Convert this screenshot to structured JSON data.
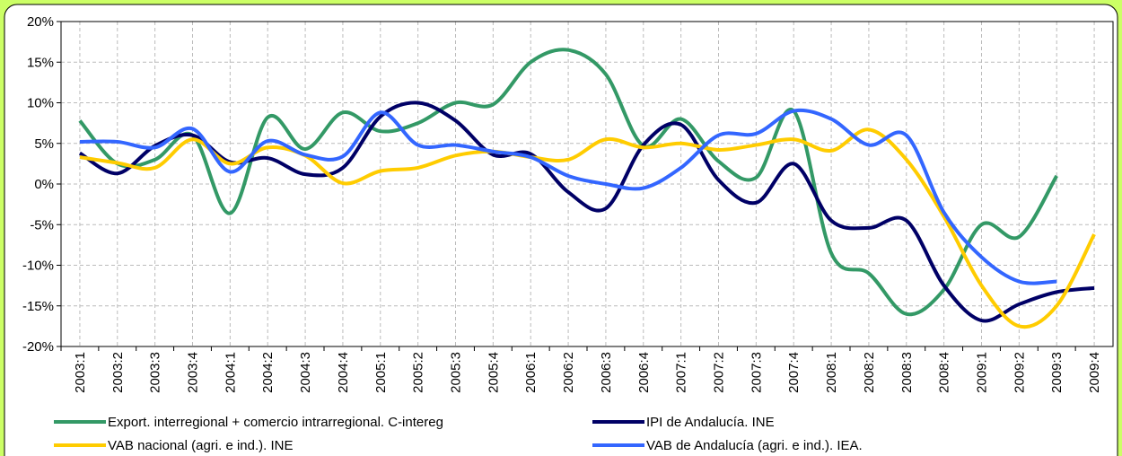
{
  "chart_data": {
    "type": "line",
    "categories": [
      "2003:1",
      "2003:2",
      "2003:3",
      "2003:4",
      "2004:1",
      "2004:2",
      "2004:3",
      "2004:4",
      "2005:1",
      "2005:2",
      "2005:3",
      "2005:4",
      "2006:1",
      "2006:2",
      "2006:3",
      "2006:4",
      "2007:1",
      "2007:2",
      "2007:3",
      "2007:4",
      "2008:1",
      "2008:2",
      "2008:3",
      "2008:4",
      "2009:1",
      "2009:2",
      "2009:3",
      "2009:4"
    ],
    "series": [
      {
        "name": "Export. interregional + comercio intrarregional. C-intereg",
        "color": "#339966",
        "values": [
          7.8,
          2.5,
          3.0,
          6.0,
          -3.6,
          8.2,
          4.3,
          8.8,
          6.5,
          7.5,
          10.0,
          9.8,
          15.0,
          16.5,
          13.5,
          4.7,
          8.0,
          2.8,
          0.8,
          9.0,
          -8.5,
          -11.0,
          -16.0,
          -13.0,
          -5.0,
          -6.5,
          1.0,
          null
        ]
      },
      {
        "name": "IPI de Andalucía. INE",
        "color": "#000066",
        "values": [
          3.8,
          1.3,
          4.7,
          6.0,
          2.7,
          3.2,
          1.2,
          2.0,
          8.3,
          10.0,
          7.8,
          3.6,
          3.7,
          -1.0,
          -3.0,
          4.8,
          7.3,
          0.5,
          -2.3,
          2.5,
          -4.5,
          -5.4,
          -4.5,
          -12.5,
          -16.8,
          -14.8,
          -13.3,
          -12.8
        ]
      },
      {
        "name": "VAB nacional (agri. e ind.). INE",
        "color": "#ffcc00",
        "values": [
          3.3,
          2.6,
          2.0,
          5.5,
          2.5,
          4.5,
          3.5,
          0.1,
          1.6,
          2.0,
          3.5,
          4.0,
          3.3,
          3.0,
          5.5,
          4.5,
          5.0,
          4.2,
          4.8,
          5.5,
          4.1,
          6.7,
          3.0,
          -4.0,
          -12.5,
          -17.5,
          -15.0,
          -6.2
        ]
      },
      {
        "name": "VAB de Andalucía (agri. e ind.). IEA.",
        "color": "#3366ff",
        "values": [
          5.2,
          5.2,
          4.5,
          6.8,
          1.5,
          5.3,
          3.6,
          3.4,
          8.8,
          4.8,
          4.8,
          4.0,
          3.3,
          1.0,
          0.0,
          -0.5,
          2.0,
          6.0,
          6.2,
          9.0,
          8.0,
          4.8,
          6.0,
          -3.5,
          -9.0,
          -12.0,
          -12.0,
          null
        ]
      }
    ],
    "ylim": [
      -20,
      20
    ],
    "yticks": [
      {
        "value": -20,
        "label": "-20%"
      },
      {
        "value": -15,
        "label": "-15%"
      },
      {
        "value": -10,
        "label": "-10%"
      },
      {
        "value": -5,
        "label": "-5%"
      },
      {
        "value": 0,
        "label": "0%"
      },
      {
        "value": 5,
        "label": "5%"
      },
      {
        "value": 10,
        "label": "10%"
      },
      {
        "value": 15,
        "label": "15%"
      },
      {
        "value": 20,
        "label": "20%"
      }
    ],
    "grid": true,
    "legend": "bottom"
  }
}
